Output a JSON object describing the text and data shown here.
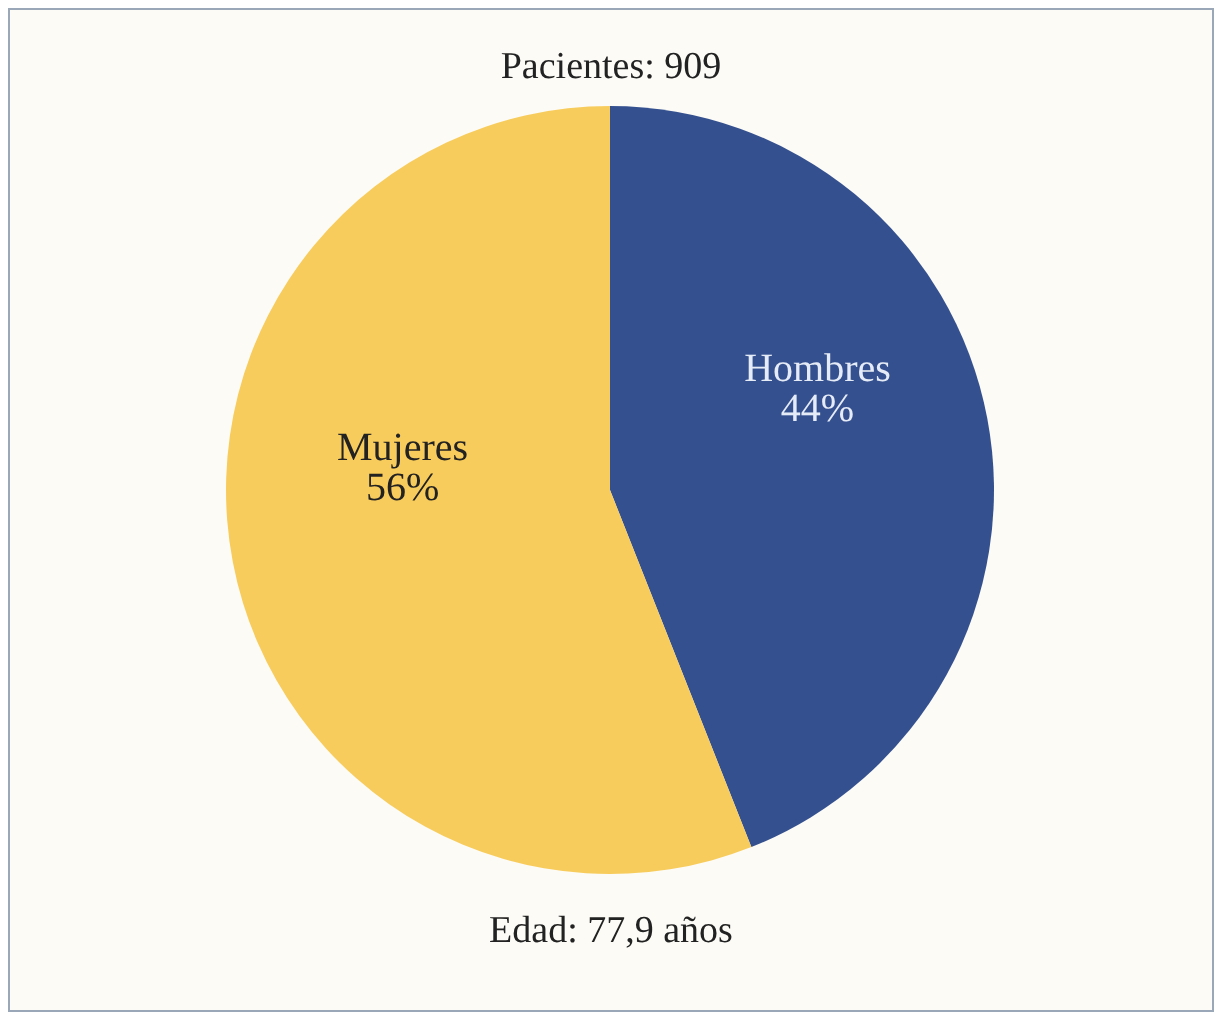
{
  "chart_data": {
    "type": "pie",
    "title": "Pacientes: 909",
    "categories": [
      "Hombres",
      "Mujeres"
    ],
    "values": [
      44,
      56
    ],
    "colors": [
      "#34508f",
      "#f8cc5c"
    ],
    "value_labels": [
      "44%",
      "56%"
    ],
    "legend": false,
    "annotations": [
      "Edad: 77,9 años"
    ]
  }
}
